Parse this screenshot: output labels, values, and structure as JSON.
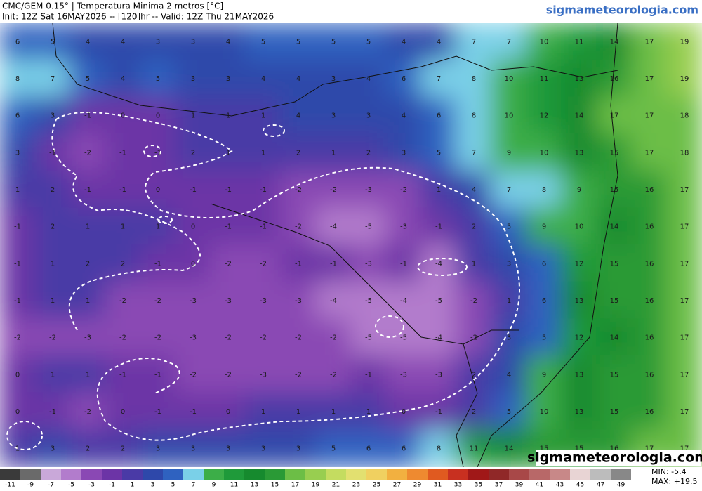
{
  "header": {
    "title": "CMC/GEM 0.15° | Temperatura Minima 2 metros [°C]",
    "subtitle": "Init: 12Z Sat 16MAY2026 -- [120]hr -- Valid: 12Z Thu 21MAY2026",
    "site": "sigmameteorologia.com"
  },
  "map": {
    "grid": [
      [
        6,
        5,
        4,
        4,
        3,
        3,
        4,
        5,
        5,
        5,
        5,
        4,
        4,
        7,
        7,
        10,
        11,
        14,
        17,
        19
      ],
      [
        8,
        7,
        5,
        4,
        5,
        3,
        3,
        4,
        4,
        3,
        4,
        6,
        7,
        8,
        10,
        11,
        13,
        16,
        17,
        19
      ],
      [
        6,
        3,
        -1,
        0,
        0,
        1,
        1,
        1,
        4,
        3,
        3,
        4,
        6,
        8,
        10,
        12,
        14,
        17,
        17,
        18
      ],
      [
        3,
        -1,
        -2,
        -1,
        -1,
        2,
        1,
        1,
        2,
        1,
        2,
        3,
        5,
        7,
        9,
        10,
        13,
        15,
        17,
        18
      ],
      [
        1,
        2,
        -1,
        -1,
        0,
        -1,
        -1,
        -1,
        -2,
        -2,
        -3,
        -2,
        1,
        4,
        7,
        8,
        9,
        15,
        16,
        17
      ],
      [
        -1,
        2,
        1,
        1,
        1,
        0,
        -1,
        -1,
        -2,
        -4,
        -5,
        -3,
        -1,
        2,
        5,
        9,
        10,
        14,
        16,
        17
      ],
      [
        -1,
        1,
        2,
        2,
        -1,
        0,
        -2,
        -2,
        -1,
        -1,
        -3,
        -1,
        -4,
        1,
        3,
        6,
        12,
        15,
        16,
        17
      ],
      [
        -1,
        1,
        1,
        -2,
        -2,
        -3,
        -3,
        -3,
        -3,
        -4,
        -5,
        -4,
        -5,
        -2,
        1,
        6,
        13,
        15,
        16,
        17
      ],
      [
        -2,
        -2,
        -3,
        -2,
        -2,
        -3,
        -2,
        -2,
        -2,
        -2,
        -5,
        -5,
        -4,
        -2,
        3,
        5,
        12,
        14,
        16,
        17
      ],
      [
        0,
        1,
        1,
        -1,
        -1,
        -2,
        -2,
        -3,
        -2,
        -2,
        -1,
        -3,
        -3,
        2,
        4,
        9,
        13,
        15,
        16,
        17
      ],
      [
        0,
        -1,
        -2,
        0,
        -1,
        -1,
        0,
        1,
        1,
        1,
        1,
        0,
        -1,
        2,
        5,
        10,
        13,
        15,
        16,
        17
      ],
      [
        1,
        3,
        2,
        2,
        3,
        3,
        3,
        3,
        3,
        5,
        6,
        6,
        8,
        11,
        14,
        15,
        15,
        16,
        17,
        17
      ]
    ],
    "watermark": "sigmameteorologia.com",
    "min_label": "MIN: -5.4",
    "max_label": "MAX: +19.5"
  },
  "colorbar": {
    "ticks": [
      -11,
      -9,
      -7,
      -5,
      -3,
      -1,
      1,
      3,
      5,
      7,
      9,
      11,
      13,
      15,
      17,
      19,
      21,
      23,
      25,
      27,
      29,
      31,
      33,
      35,
      37,
      39,
      41,
      43,
      45,
      47,
      49
    ],
    "colors": [
      "#3a3a3a",
      "#6a6a6a",
      "#c9a8d9",
      "#b27ccc",
      "#8a48b4",
      "#6c34a6",
      "#4a3aa6",
      "#2e48aa",
      "#2f62c0",
      "#7ad0e8",
      "#3cae48",
      "#1f9a3a",
      "#168a2e",
      "#2a9a36",
      "#6cbe46",
      "#98ce50",
      "#c4dc60",
      "#e2e070",
      "#f0d060",
      "#f2b040",
      "#ee8a30",
      "#e05a20",
      "#c83020",
      "#a01818",
      "#902828",
      "#a84848",
      "#b86868",
      "#c88888",
      "#e8d4d4",
      "#bcbcbc",
      "#888888"
    ]
  }
}
